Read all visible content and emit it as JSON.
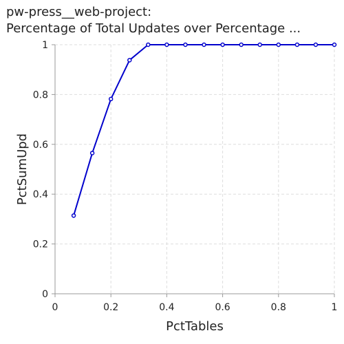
{
  "chart_data": {
    "type": "line",
    "title_lines": [
      "pw-press__web-project:",
      "Percentage of Total Updates over Percentage ..."
    ],
    "xlabel": "PctTables",
    "ylabel": "PctSumUpd",
    "xlim": [
      0,
      1
    ],
    "ylim": [
      0,
      1
    ],
    "xticks": [
      "0",
      "0.2",
      "0.4",
      "0.6",
      "0.8",
      "1"
    ],
    "yticks": [
      "0",
      "0.2",
      "0.4",
      "0.6",
      "0.8",
      "1"
    ],
    "grid": true,
    "legend": "none",
    "series": [
      {
        "color": "#0000cc",
        "x": [
          0.0667,
          0.1333,
          0.2,
          0.2667,
          0.3333,
          0.4,
          0.4667,
          0.5333,
          0.6,
          0.6667,
          0.7333,
          0.8,
          0.8667,
          0.9333,
          1.0
        ],
        "y": [
          0.314,
          0.565,
          0.782,
          0.938,
          1.0,
          1.0,
          1.0,
          1.0,
          1.0,
          1.0,
          1.0,
          1.0,
          1.0,
          1.0,
          1.0
        ]
      }
    ]
  }
}
